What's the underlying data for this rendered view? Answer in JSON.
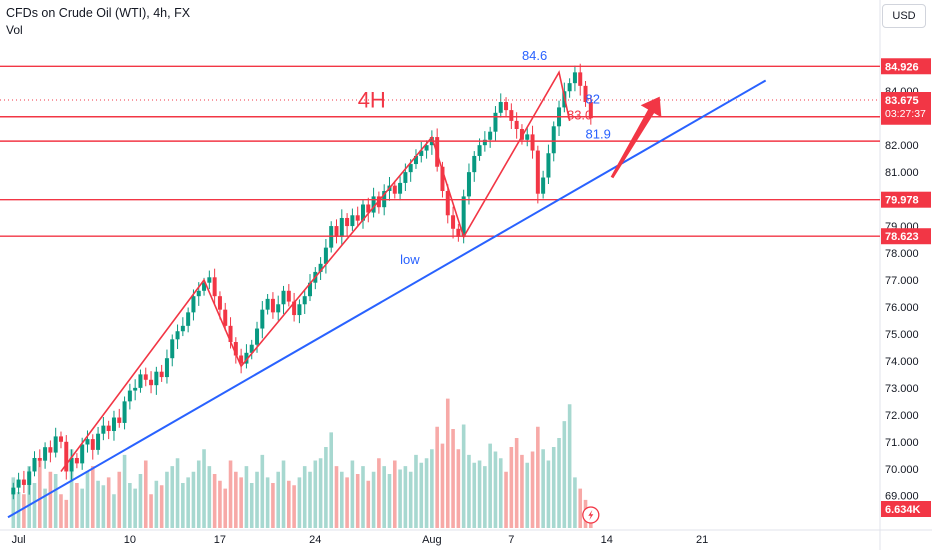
{
  "header": {
    "title": "CFDs on Crude Oil (WTI), 4h, FX",
    "indicator": "Vol",
    "currency_button": "USD"
  },
  "colors": {
    "up": "#089981",
    "down": "#f23645",
    "vol_up": "#a7d8d0",
    "vol_down": "#f7a9a7",
    "level_line": "#f23645",
    "trend_line": "#2962ff",
    "zigzag": "#f23645",
    "annotation_blue": "#2962ff",
    "annotation_red": "#f23645"
  },
  "chart_data": {
    "type": "candlestick",
    "symbol": "CFDs on Crude Oil (WTI)",
    "timeframe": "4h",
    "ylim": [
      68.1,
      85.9
    ],
    "xlim": [
      -1,
      123
    ],
    "y_ticks": [
      "69.000",
      "70.000",
      "71.000",
      "72.000",
      "73.000",
      "74.000",
      "75.000",
      "76.000",
      "77.000",
      "78.000",
      "79.000",
      "80.000",
      "81.000",
      "82.000",
      "84.000"
    ],
    "x_ticks": [
      {
        "label": "Jul",
        "x": 1
      },
      {
        "label": "10",
        "x": 22
      },
      {
        "label": "17",
        "x": 39
      },
      {
        "label": "24",
        "x": 57
      },
      {
        "label": "Aug",
        "x": 79
      },
      {
        "label": "7",
        "x": 94
      },
      {
        "label": "14",
        "x": 112
      },
      {
        "label": "21",
        "x": 130
      }
    ],
    "price_levels": [
      {
        "value": "84.926",
        "y": 84.926
      },
      {
        "value": "83.054",
        "y": 83.054
      },
      {
        "value": "79.978",
        "y": 79.978
      },
      {
        "value": "78.623",
        "y": 78.623
      }
    ],
    "extra_hline": {
      "y": 82.15
    },
    "current_price": {
      "value": "83.675",
      "countdown": "03:27:37",
      "y": 83.675
    },
    "volume_label": "6.634K",
    "trendline": [
      [
        -1,
        68.2
      ],
      [
        142,
        84.4
      ]
    ],
    "zigzag": [
      [
        9,
        69.9
      ],
      [
        36,
        77.0
      ],
      [
        43,
        73.8
      ],
      [
        79,
        82.3
      ],
      [
        85,
        78.6
      ],
      [
        103,
        84.7
      ],
      [
        105,
        82.9
      ]
    ],
    "forecast_arrow": {
      "from": [
        113,
        80.8
      ],
      "to": [
        122,
        83.8
      ]
    },
    "annotations": [
      {
        "text": "84.6",
        "x": 96,
        "y": 85.15,
        "color": "blue"
      },
      {
        "text": "82",
        "x": 108,
        "y": 83.55,
        "color": "blue"
      },
      {
        "text": "83.0",
        "x": 104.5,
        "y": 82.95,
        "color": "red"
      },
      {
        "text": "81.9",
        "x": 108,
        "y": 82.25,
        "color": "blue"
      },
      {
        "text": "4H",
        "x": 65,
        "y": 83.4,
        "color": "red"
      },
      {
        "text": "low",
        "x": 73,
        "y": 77.6,
        "color": "blue"
      }
    ],
    "closes": [
      69.3,
      69.6,
      69.4,
      69.9,
      70.4,
      70.3,
      70.8,
      70.6,
      71.2,
      71.0,
      69.9,
      70.4,
      70.2,
      70.9,
      71.1,
      70.7,
      71.3,
      71.6,
      71.4,
      71.9,
      71.7,
      72.5,
      72.9,
      73.0,
      73.5,
      73.3,
      73.1,
      73.6,
      73.4,
      74.1,
      74.8,
      75.1,
      75.3,
      75.8,
      76.4,
      76.6,
      76.9,
      77.1,
      76.4,
      75.9,
      75.3,
      74.7,
      74.2,
      73.9,
      74.3,
      74.6,
      75.2,
      75.9,
      76.3,
      75.8,
      76.1,
      76.6,
      76.2,
      75.7,
      76.1,
      76.4,
      76.9,
      77.3,
      77.6,
      78.2,
      79.0,
      78.6,
      79.3,
      79.0,
      79.4,
      79.2,
      79.8,
      79.5,
      80.1,
      79.7,
      80.3,
      80.5,
      80.2,
      80.6,
      81.0,
      81.3,
      81.6,
      81.8,
      82.0,
      82.3,
      81.2,
      80.3,
      79.4,
      78.9,
      78.6,
      80.1,
      81.0,
      81.6,
      82.0,
      82.2,
      82.5,
      83.2,
      83.6,
      83.3,
      82.9,
      82.6,
      82.2,
      82.4,
      81.8,
      80.2,
      80.8,
      81.7,
      82.7,
      83.4,
      84.0,
      84.3,
      84.7,
      84.2,
      83.6,
      83.0
    ],
    "volumes": [
      0.45,
      0.32,
      0.3,
      0.55,
      0.4,
      0.6,
      0.35,
      0.5,
      0.48,
      0.3,
      0.25,
      0.7,
      0.4,
      0.35,
      0.5,
      0.55,
      0.42,
      0.38,
      0.45,
      0.3,
      0.5,
      0.65,
      0.4,
      0.35,
      0.48,
      0.6,
      0.3,
      0.42,
      0.38,
      0.5,
      0.55,
      0.62,
      0.4,
      0.45,
      0.5,
      0.6,
      0.7,
      0.55,
      0.48,
      0.42,
      0.35,
      0.6,
      0.5,
      0.45,
      0.55,
      0.4,
      0.5,
      0.65,
      0.45,
      0.4,
      0.5,
      0.6,
      0.42,
      0.38,
      0.45,
      0.55,
      0.5,
      0.6,
      0.62,
      0.72,
      0.85,
      0.55,
      0.5,
      0.45,
      0.6,
      0.48,
      0.55,
      0.42,
      0.5,
      0.62,
      0.55,
      0.48,
      0.6,
      0.52,
      0.55,
      0.5,
      0.65,
      0.58,
      0.62,
      0.7,
      0.9,
      0.75,
      1.15,
      0.88,
      0.7,
      0.92,
      0.65,
      0.58,
      0.6,
      0.55,
      0.75,
      0.68,
      0.62,
      0.5,
      0.72,
      0.8,
      0.65,
      0.58,
      0.68,
      0.9,
      0.7,
      0.6,
      0.72,
      0.8,
      0.95,
      1.1,
      0.45,
      0.35,
      0.25,
      0.12
    ]
  }
}
